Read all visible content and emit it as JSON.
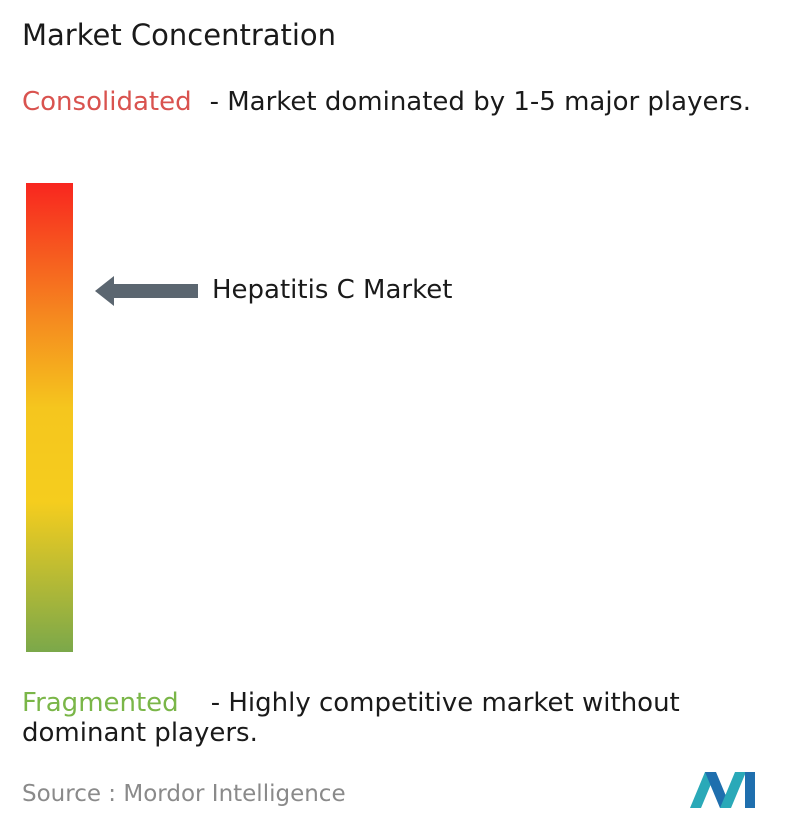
{
  "header": {
    "title": "Market Concentration"
  },
  "consolidated": {
    "label": "Consolidated",
    "description": "- Market dominated by 1-5 major players."
  },
  "marker": {
    "label": "Hepatitis C Market"
  },
  "fragmented": {
    "label": "Fragmented",
    "description": "- Highly competitive market without dominant players."
  },
  "source": {
    "label": "Source :",
    "name": "Mordor Intelligence"
  }
}
